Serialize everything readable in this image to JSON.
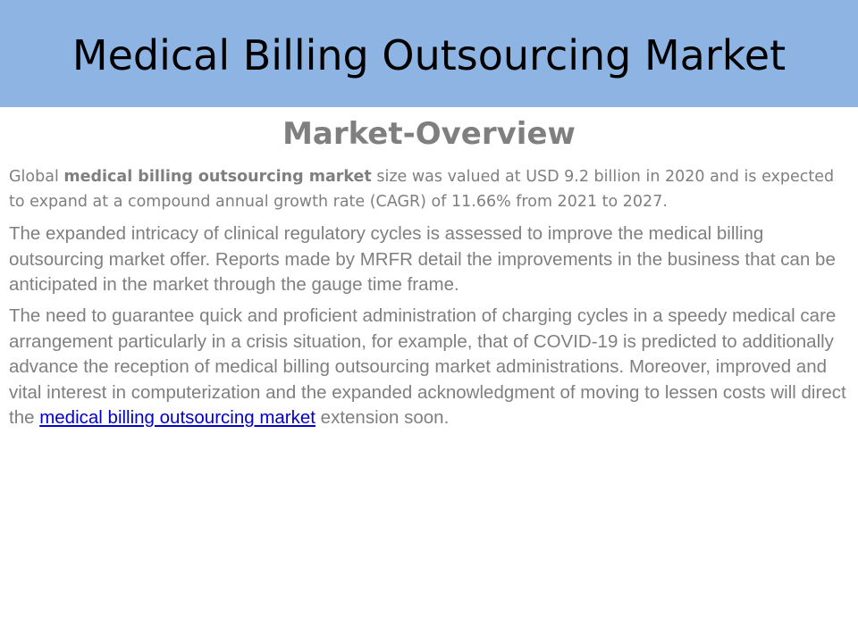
{
  "slide": {
    "title": "Medical Billing Outsourcing Market",
    "subtitle": "Market-Overview",
    "paragraph1": {
      "lead": "Global ",
      "bold": "medical billing outsourcing market",
      "rest": " size was valued at USD 9.2 billion in 2020 and is expected to expand at a compound annual growth rate (CAGR) of 11.66% from 2021 to 2027."
    },
    "paragraph2": "The expanded intricacy of clinical regulatory cycles is assessed to improve the medical billing outsourcing market offer. Reports made by MRFR detail the improvements in the business that can be anticipated in the market through the gauge time frame.",
    "paragraph3": {
      "text": "The need to guarantee quick and proficient administration of charging cycles in a speedy medical care arrangement particularly in a crisis situation, for example, that of COVID-19 is predicted to additionally advance the reception of medical billing outsourcing market administrations. Moreover, improved and vital interest in computerization and the expanded acknowledgment of moving to lessen costs will direct the ",
      "link": "medical billing outsourcing market",
      "tail": " extension soon."
    }
  },
  "colors": {
    "title_bar": "#8eb4e3",
    "body_text": "#7f7f7f",
    "link": "#0000cc"
  }
}
